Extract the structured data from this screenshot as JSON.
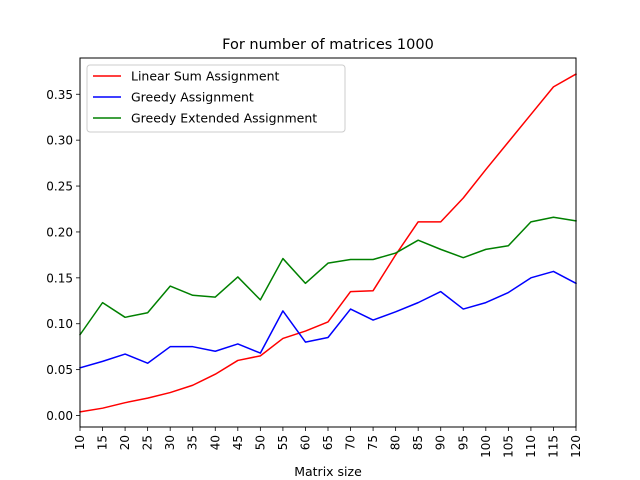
{
  "chart_data": {
    "type": "line",
    "title": "For number of matrices 1000",
    "xlabel": "Matrix size",
    "ylabel": "",
    "x": [
      10,
      15,
      20,
      25,
      30,
      35,
      40,
      45,
      50,
      55,
      60,
      65,
      70,
      75,
      80,
      85,
      90,
      95,
      100,
      105,
      110,
      115,
      120
    ],
    "xticks": [
      "10",
      "15",
      "20",
      "25",
      "30",
      "35",
      "40",
      "45",
      "50",
      "55",
      "60",
      "65",
      "70",
      "75",
      "80",
      "85",
      "90",
      "95",
      "100",
      "105",
      "110",
      "115",
      "120"
    ],
    "xlim": [
      10,
      120
    ],
    "ylim": [
      -0.0125,
      0.3895
    ],
    "yticks": [
      0.0,
      0.05,
      0.1,
      0.15,
      0.2,
      0.25,
      0.3,
      0.35
    ],
    "ytick_labels": [
      "0.00",
      "0.05",
      "0.10",
      "0.15",
      "0.20",
      "0.25",
      "0.30",
      "0.35"
    ],
    "grid": false,
    "legend_position": "top-left",
    "series": [
      {
        "name": "Linear Sum Assignment",
        "color": "#ff0000",
        "values": [
          0.004,
          0.008,
          0.014,
          0.019,
          0.025,
          0.033,
          0.045,
          0.06,
          0.065,
          0.084,
          0.092,
          0.102,
          0.135,
          0.136,
          0.175,
          0.211,
          0.211,
          0.237,
          0.268,
          0.298,
          0.328,
          0.358,
          0.372
        ]
      },
      {
        "name": "Greedy Assignment",
        "color": "#0000ff",
        "values": [
          0.052,
          0.059,
          0.067,
          0.057,
          0.075,
          0.075,
          0.07,
          0.078,
          0.068,
          0.114,
          0.08,
          0.085,
          0.116,
          0.104,
          0.113,
          0.123,
          0.135,
          0.116,
          0.123,
          0.134,
          0.15,
          0.157,
          0.144
        ]
      },
      {
        "name": "Greedy Extended Assignment",
        "color": "#008000",
        "values": [
          0.088,
          0.123,
          0.107,
          0.112,
          0.141,
          0.131,
          0.129,
          0.151,
          0.126,
          0.171,
          0.144,
          0.166,
          0.17,
          0.17,
          0.177,
          0.191,
          0.181,
          0.172,
          0.181,
          0.185,
          0.211,
          0.216,
          0.212
        ]
      }
    ]
  }
}
